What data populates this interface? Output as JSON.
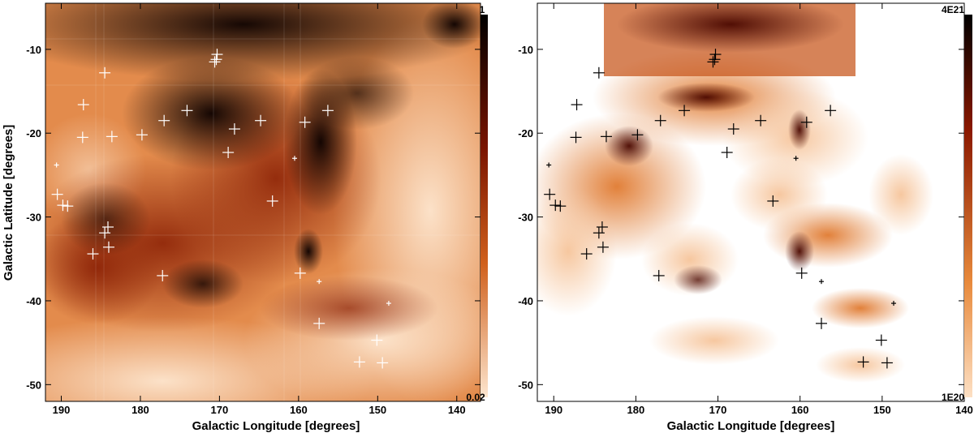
{
  "figure": {
    "panels": [
      {
        "id": "left",
        "image_kind": "dust-emission-map",
        "xlabel": "Galactic Longitude [degrees]",
        "ylabel": "Galactic Latitude [degrees]",
        "x_ticks": [
          "190",
          "180",
          "170",
          "160",
          "150",
          "140"
        ],
        "y_ticks": [
          "-10",
          "-20",
          "-30",
          "-40",
          "-50"
        ],
        "colorbar": {
          "max_label": "1",
          "min_label": "0.02"
        },
        "colors": {
          "dark": "#130200",
          "mid": "#b8420e",
          "light": "#fde6cf",
          "marker": "#ffffff"
        }
      },
      {
        "id": "right",
        "image_kind": "column-density-map",
        "xlabel": "Galactic Longitude [degrees]",
        "ylabel": "",
        "x_ticks": [
          "190",
          "180",
          "170",
          "160",
          "150",
          "140"
        ],
        "y_ticks": [
          "-10",
          "-20",
          "-30",
          "-40",
          "-50"
        ],
        "colorbar": {
          "max_label": "4E21",
          "min_label": "1E20"
        },
        "colors": {
          "dark": "#1a0300",
          "mid": "#e07a30",
          "light": "#fad9b4",
          "marker": "#000000"
        }
      }
    ],
    "markers": [
      [
        184.5,
        -12.8
      ],
      [
        187.2,
        -16.6
      ],
      [
        187.3,
        -20.5
      ],
      [
        183.6,
        -20.4
      ],
      [
        179.8,
        -20.2
      ],
      [
        177.0,
        -18.5
      ],
      [
        174.1,
        -17.3
      ],
      [
        170.3,
        -10.6
      ],
      [
        170.6,
        -11.5
      ],
      [
        170.4,
        -11.2
      ],
      [
        168.1,
        -19.5
      ],
      [
        168.9,
        -22.3
      ],
      [
        164.8,
        -18.5
      ],
      [
        159.2,
        -18.7
      ],
      [
        156.3,
        -17.3
      ],
      [
        163.3,
        -28.1
      ],
      [
        190.5,
        -27.3
      ],
      [
        189.8,
        -28.6
      ],
      [
        189.2,
        -28.7
      ],
      [
        184.5,
        -31.9
      ],
      [
        184.1,
        -31.2
      ],
      [
        184.0,
        -33.6
      ],
      [
        186.0,
        -34.4
      ],
      [
        177.2,
        -37.0
      ],
      [
        159.8,
        -36.7
      ],
      [
        157.4,
        -42.7
      ],
      [
        150.1,
        -44.7
      ],
      [
        152.3,
        -47.3
      ],
      [
        149.4,
        -47.4
      ],
      [
        190.6,
        -23.8
      ],
      [
        160.5,
        -23.0
      ],
      [
        157.4,
        -37.7
      ],
      [
        148.6,
        -40.3
      ]
    ],
    "marker_small": [
      false,
      false,
      false,
      false,
      false,
      false,
      false,
      false,
      false,
      false,
      false,
      false,
      false,
      false,
      false,
      false,
      false,
      false,
      false,
      false,
      false,
      false,
      false,
      false,
      false,
      false,
      false,
      false,
      false,
      true,
      true,
      true,
      true
    ]
  }
}
